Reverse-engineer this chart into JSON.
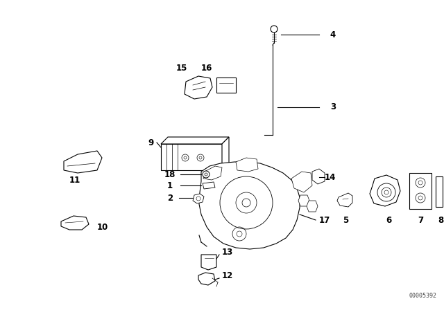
{
  "bg_color": "#ffffff",
  "part_number_text": "00005392",
  "fig_width": 6.4,
  "fig_height": 4.48,
  "dpi": 100,
  "line_color": "#000000",
  "lw": 0.8
}
